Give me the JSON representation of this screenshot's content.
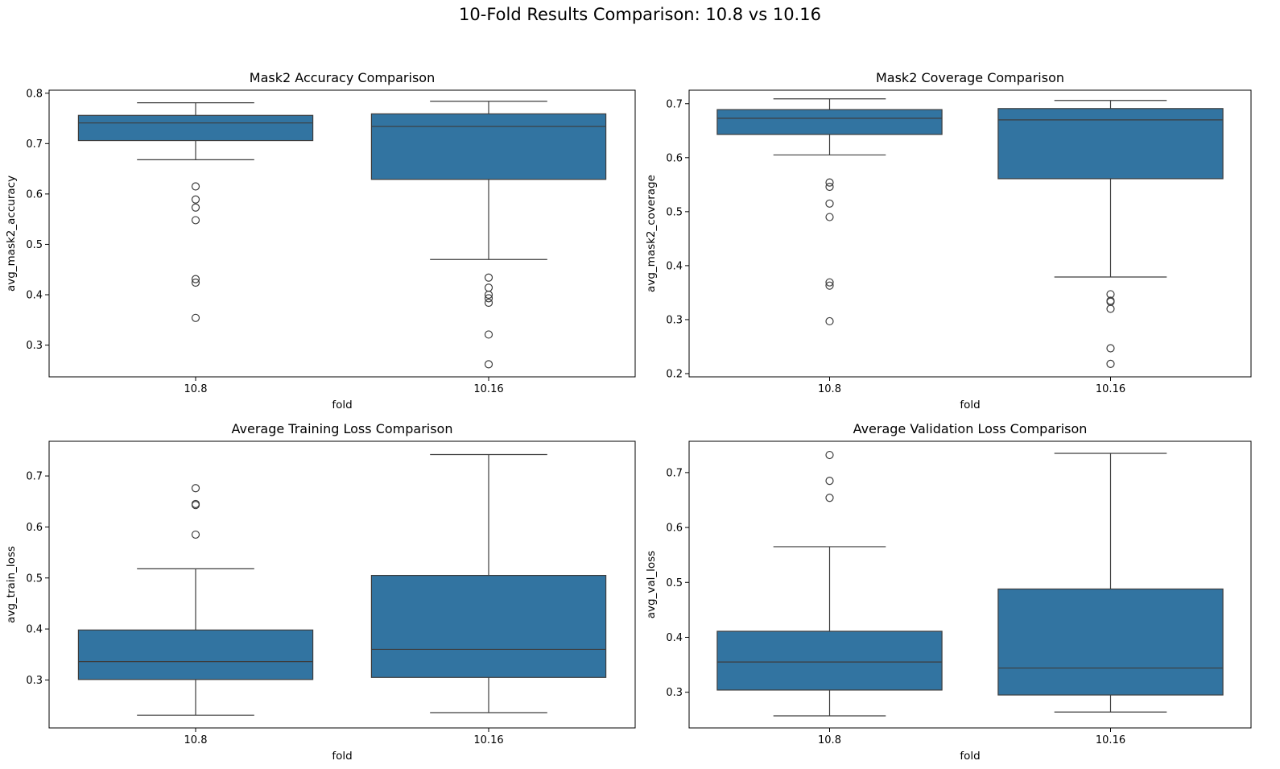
{
  "figure": {
    "suptitle": "10-Fold Results Comparison: 10.8 vs 10.16"
  },
  "chart_data": [
    {
      "type": "box",
      "title": "Mask2 Accuracy Comparison",
      "xlabel": "fold",
      "ylabel": "avg_mask2_accuracy",
      "categories": [
        "10.8",
        "10.16"
      ],
      "ylim": [
        0.237,
        0.806
      ],
      "yticks": [
        "0.3",
        "0.4",
        "0.5",
        "0.6",
        "0.7",
        "0.8"
      ],
      "boxes": [
        {
          "category": "10.8",
          "whisker_low": 0.668,
          "q1": 0.706,
          "median": 0.741,
          "q3": 0.756,
          "whisker_high": 0.781,
          "outliers": [
            0.615,
            0.589,
            0.573,
            0.548,
            0.431,
            0.424,
            0.354
          ]
        },
        {
          "category": "10.16",
          "whisker_low": 0.47,
          "q1": 0.629,
          "median": 0.734,
          "q3": 0.759,
          "whisker_high": 0.784,
          "outliers": [
            0.434,
            0.414,
            0.4,
            0.393,
            0.384,
            0.321,
            0.262
          ]
        }
      ]
    },
    {
      "type": "box",
      "title": "Mask2 Coverage Comparison",
      "xlabel": "fold",
      "ylabel": "avg_mask2_coverage",
      "categories": [
        "10.8",
        "10.16"
      ],
      "ylim": [
        0.194,
        0.725
      ],
      "yticks": [
        "0.2",
        "0.3",
        "0.4",
        "0.5",
        "0.6",
        "0.7"
      ],
      "boxes": [
        {
          "category": "10.8",
          "whisker_low": 0.605,
          "q1": 0.643,
          "median": 0.673,
          "q3": 0.689,
          "whisker_high": 0.709,
          "outliers": [
            0.554,
            0.546,
            0.515,
            0.49,
            0.369,
            0.363,
            0.297
          ]
        },
        {
          "category": "10.16",
          "whisker_low": 0.379,
          "q1": 0.561,
          "median": 0.67,
          "q3": 0.691,
          "whisker_high": 0.706,
          "outliers": [
            0.347,
            0.335,
            0.333,
            0.32,
            0.247,
            0.218
          ]
        }
      ]
    },
    {
      "type": "box",
      "title": "Average Training Loss Comparison",
      "xlabel": "fold",
      "ylabel": "avg_train_loss",
      "categories": [
        "10.8",
        "10.16"
      ],
      "ylim": [
        0.206,
        0.768
      ],
      "yticks": [
        "0.3",
        "0.4",
        "0.5",
        "0.6",
        "0.7"
      ],
      "boxes": [
        {
          "category": "10.8",
          "whisker_low": 0.231,
          "q1": 0.301,
          "median": 0.336,
          "q3": 0.398,
          "whisker_high": 0.518,
          "outliers": [
            0.676,
            0.645,
            0.643,
            0.585
          ]
        },
        {
          "category": "10.16",
          "whisker_low": 0.236,
          "q1": 0.305,
          "median": 0.36,
          "q3": 0.505,
          "whisker_high": 0.742,
          "outliers": []
        }
      ]
    },
    {
      "type": "box",
      "title": "Average Validation Loss Comparison",
      "xlabel": "fold",
      "ylabel": "avg_val_loss",
      "categories": [
        "10.8",
        "10.16"
      ],
      "ylim": [
        0.235,
        0.757
      ],
      "yticks": [
        "0.3",
        "0.4",
        "0.5",
        "0.6",
        "0.7"
      ],
      "boxes": [
        {
          "category": "10.8",
          "whisker_low": 0.257,
          "q1": 0.304,
          "median": 0.355,
          "q3": 0.411,
          "whisker_high": 0.565,
          "outliers": [
            0.732,
            0.685,
            0.654
          ]
        },
        {
          "category": "10.16",
          "whisker_low": 0.264,
          "q1": 0.295,
          "median": 0.344,
          "q3": 0.488,
          "whisker_high": 0.735,
          "outliers": []
        }
      ]
    }
  ]
}
